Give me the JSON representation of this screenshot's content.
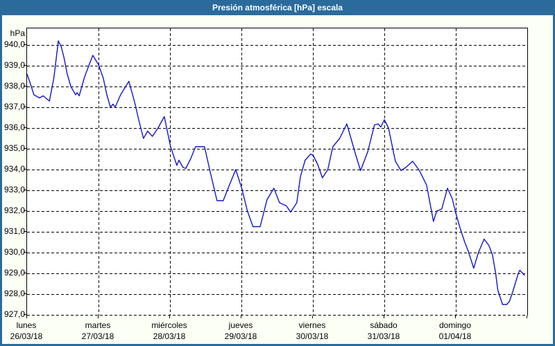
{
  "window": {
    "title": "Presión atmosférica [hPa] escala"
  },
  "colors": {
    "chrome_blue": "#2b6b9c",
    "client_background": "#fbfff4",
    "plot_background": "#ffffff",
    "grid": "#000000",
    "line_blue": "#1414cc",
    "title_text": "#ffffff",
    "label_text": "#000000"
  },
  "chart_data": {
    "type": "line",
    "title": "Presión atmosférica [hPa] escala",
    "unit_label": "hPa",
    "grid": "dashed",
    "legend_position": "none",
    "y_axis": {
      "min": 927.0,
      "plot_top_value": 940.8,
      "tick_step": 1.0,
      "labels": [
        "940,0",
        "939,0",
        "938,0",
        "937,0",
        "936,0",
        "935,0",
        "934,0",
        "933,0",
        "932,0",
        "931,0",
        "930,0",
        "929,0",
        "928,0",
        "927,0"
      ]
    },
    "x_axis": {
      "range_hours": [
        0,
        168
      ],
      "tick_hours": [
        0,
        24,
        48,
        72,
        96,
        120,
        144,
        168
      ],
      "day_labels": [
        {
          "name": "lunes",
          "date": "26/03/18"
        },
        {
          "name": "martes",
          "date": "27/03/18"
        },
        {
          "name": "miércoles",
          "date": "28/03/18"
        },
        {
          "name": "jueves",
          "date": "29/03/18"
        },
        {
          "name": "viernes",
          "date": "30/03/18"
        },
        {
          "name": "sábado",
          "date": "31/03/18"
        },
        {
          "name": "domingo",
          "date": "01/04/18"
        }
      ]
    },
    "series": [
      {
        "name": "Presión atmosférica",
        "color": "#1414cc",
        "points": [
          [
            0,
            938.6
          ],
          [
            1.2,
            938.1
          ],
          [
            2.3,
            937.6
          ],
          [
            4.2,
            937.45
          ],
          [
            5.4,
            937.55
          ],
          [
            7.5,
            937.3
          ],
          [
            9,
            938.4
          ],
          [
            10.5,
            940.2
          ],
          [
            11.5,
            939.9
          ],
          [
            12.4,
            939.4
          ],
          [
            13.5,
            938.6
          ],
          [
            14.7,
            938.0
          ],
          [
            16.3,
            937.6
          ],
          [
            16.8,
            937.7
          ],
          [
            17.5,
            937.55
          ],
          [
            19.3,
            938.45
          ],
          [
            21,
            939.1
          ],
          [
            22.1,
            939.5
          ],
          [
            24,
            939.05
          ],
          [
            25.6,
            938.4
          ],
          [
            26.8,
            937.6
          ],
          [
            28,
            937.0
          ],
          [
            28.9,
            937.15
          ],
          [
            29.6,
            937.0
          ],
          [
            31.4,
            937.6
          ],
          [
            33.1,
            938.0
          ],
          [
            34.2,
            938.25
          ],
          [
            36.3,
            937.15
          ],
          [
            37.5,
            936.4
          ],
          [
            39.1,
            935.5
          ],
          [
            40.5,
            935.85
          ],
          [
            42.1,
            935.6
          ],
          [
            44,
            936.0
          ],
          [
            46.1,
            936.55
          ],
          [
            48.2,
            935.1
          ],
          [
            50.3,
            934.2
          ],
          [
            51,
            934.45
          ],
          [
            52.4,
            934.1
          ],
          [
            53.3,
            934.05
          ],
          [
            54.9,
            934.5
          ],
          [
            56.6,
            935.1
          ],
          [
            59.6,
            935.1
          ],
          [
            61.5,
            933.9
          ],
          [
            63.8,
            932.5
          ],
          [
            65.9,
            932.5
          ],
          [
            67.8,
            933.2
          ],
          [
            70.1,
            934.0
          ],
          [
            72.2,
            933.05
          ],
          [
            74,
            932.0
          ],
          [
            75.9,
            931.25
          ],
          [
            78.3,
            931.25
          ],
          [
            80.6,
            932.55
          ],
          [
            82.9,
            933.1
          ],
          [
            84.8,
            932.4
          ],
          [
            87.1,
            932.25
          ],
          [
            88.5,
            931.95
          ],
          [
            90.6,
            932.4
          ],
          [
            91.8,
            933.65
          ],
          [
            93.4,
            934.45
          ],
          [
            95.3,
            934.75
          ],
          [
            96.2,
            934.65
          ],
          [
            97.6,
            934.25
          ],
          [
            99.2,
            933.6
          ],
          [
            101,
            934.0
          ],
          [
            102.7,
            935.1
          ],
          [
            105,
            935.5
          ],
          [
            107.4,
            936.2
          ],
          [
            109,
            935.4
          ],
          [
            110.4,
            934.7
          ],
          [
            112,
            933.95
          ],
          [
            114.4,
            934.85
          ],
          [
            116.7,
            936.15
          ],
          [
            117.9,
            936.2
          ],
          [
            118.8,
            936.05
          ],
          [
            120,
            936.4
          ],
          [
            121.4,
            936.0
          ],
          [
            123.7,
            934.4
          ],
          [
            125.6,
            933.95
          ],
          [
            127.2,
            934.1
          ],
          [
            129.5,
            934.4
          ],
          [
            131.8,
            933.95
          ],
          [
            134.2,
            933.25
          ],
          [
            135.3,
            932.4
          ],
          [
            136.5,
            931.5
          ],
          [
            137.6,
            932.0
          ],
          [
            139.3,
            932.1
          ],
          [
            141.2,
            933.1
          ],
          [
            142.8,
            932.6
          ],
          [
            144,
            931.9
          ],
          [
            145.4,
            931.2
          ],
          [
            147,
            930.5
          ],
          [
            148.1,
            930.1
          ],
          [
            150,
            929.25
          ],
          [
            151.6,
            930.0
          ],
          [
            153.5,
            930.65
          ],
          [
            155.1,
            930.35
          ],
          [
            156.3,
            929.9
          ],
          [
            157.4,
            929.0
          ],
          [
            158.1,
            928.2
          ],
          [
            159.7,
            927.5
          ],
          [
            161.1,
            927.5
          ],
          [
            162,
            927.65
          ],
          [
            163.2,
            928.15
          ],
          [
            165,
            929.0
          ],
          [
            165.5,
            929.15
          ],
          [
            167.1,
            928.9
          ]
        ]
      }
    ]
  }
}
